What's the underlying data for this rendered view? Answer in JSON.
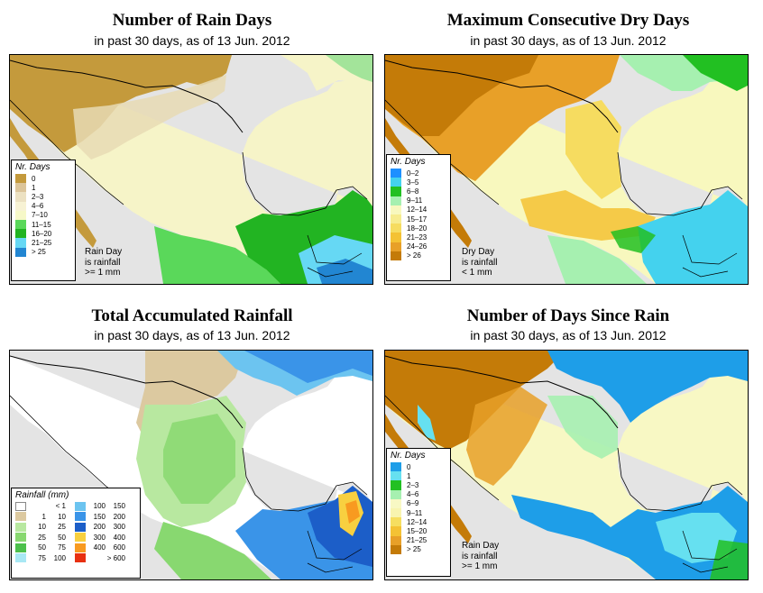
{
  "panels": [
    {
      "title": "Number of Rain Days",
      "subtitle": "in past 30 days, as of  13 Jun. 2012",
      "legend": {
        "title": "Nr. Days",
        "items": [
          {
            "label": "0",
            "color": "#c49a3c"
          },
          {
            "label": "1",
            "color": "#dcc59a"
          },
          {
            "label": "2–3",
            "color": "#ece1c2"
          },
          {
            "label": "4–6",
            "color": "#f7f2d4"
          },
          {
            "label": "7–10",
            "color": "#f6f8c8"
          },
          {
            "label": "11–15",
            "color": "#5ad85a"
          },
          {
            "label": "16–20",
            "color": "#22b422"
          },
          {
            "label": "21–25",
            "color": "#66d8f4"
          },
          {
            "label": "> 25",
            "color": "#2286d2"
          }
        ]
      },
      "note": [
        "Rain Day",
        "is rainfall",
        ">= 1 mm"
      ]
    },
    {
      "title": "Maximum Consecutive Dry Days",
      "subtitle": "in past 30 days, as of  13 Jun. 2012",
      "legend": {
        "title": "Nr. Days",
        "items": [
          {
            "label": "0–2",
            "color": "#1e90ff"
          },
          {
            "label": "3–5",
            "color": "#44d2ee"
          },
          {
            "label": "6–8",
            "color": "#22c022"
          },
          {
            "label": "9–11",
            "color": "#a6f0b0"
          },
          {
            "label": "12–14",
            "color": "#f8f8be"
          },
          {
            "label": "15–17",
            "color": "#f7ec90"
          },
          {
            "label": "18–20",
            "color": "#f6dc60"
          },
          {
            "label": "21–23",
            "color": "#f4c234"
          },
          {
            "label": "24–26",
            "color": "#e8a028"
          },
          {
            "label": "> 26",
            "color": "#c47b08"
          }
        ]
      },
      "note": [
        "Dry Day",
        "is rainfall",
        "< 1 mm"
      ]
    },
    {
      "title": "Total Accumulated Rainfall",
      "subtitle": "in past 30 days, as of  13 Jun. 2012",
      "legend": {
        "title": "Rainfall (mm)",
        "items": [
          {
            "from": "",
            "to": "< 1",
            "color": "#ffffff"
          },
          {
            "from": "1",
            "to": "10",
            "color": "#dcc9a0"
          },
          {
            "from": "10",
            "to": "25",
            "color": "#b8e8a0"
          },
          {
            "from": "25",
            "to": "50",
            "color": "#88d870"
          },
          {
            "from": "50",
            "to": "75",
            "color": "#4cc04c"
          },
          {
            "from": "75",
            "to": "100",
            "color": "#a8e8f4"
          },
          {
            "from": "100",
            "to": "150",
            "color": "#6cc4f0"
          },
          {
            "from": "150",
            "to": "200",
            "color": "#3a94e8"
          },
          {
            "from": "200",
            "to": "300",
            "color": "#1c5ec8"
          },
          {
            "from": "300",
            "to": "400",
            "color": "#f8d040"
          },
          {
            "from": "400",
            "to": "600",
            "color": "#f89a20"
          },
          {
            "from": "",
            "to": "> 600",
            "color": "#e83010"
          }
        ]
      },
      "note": []
    },
    {
      "title": "Number of Days Since Rain",
      "subtitle": "in past 30 days, as of  13 Jun. 2012",
      "legend": {
        "title": "Nr. Days",
        "items": [
          {
            "label": "0",
            "color": "#1e9ee8"
          },
          {
            "label": "1",
            "color": "#66e0f0"
          },
          {
            "label": "2–3",
            "color": "#22c022"
          },
          {
            "label": "4–6",
            "color": "#a6f0b0"
          },
          {
            "label": "6–9",
            "color": "#f8f8c4"
          },
          {
            "label": "9–11",
            "color": "#f8f4b0"
          },
          {
            "label": "12–14",
            "color": "#f6de60"
          },
          {
            "label": "15–20",
            "color": "#f4c234"
          },
          {
            "label": "21–25",
            "color": "#e8a028"
          },
          {
            "label": "> 25",
            "color": "#c47b08"
          }
        ]
      },
      "note": [
        "Rain Day",
        "is rainfall",
        ">= 1 mm"
      ]
    }
  ]
}
